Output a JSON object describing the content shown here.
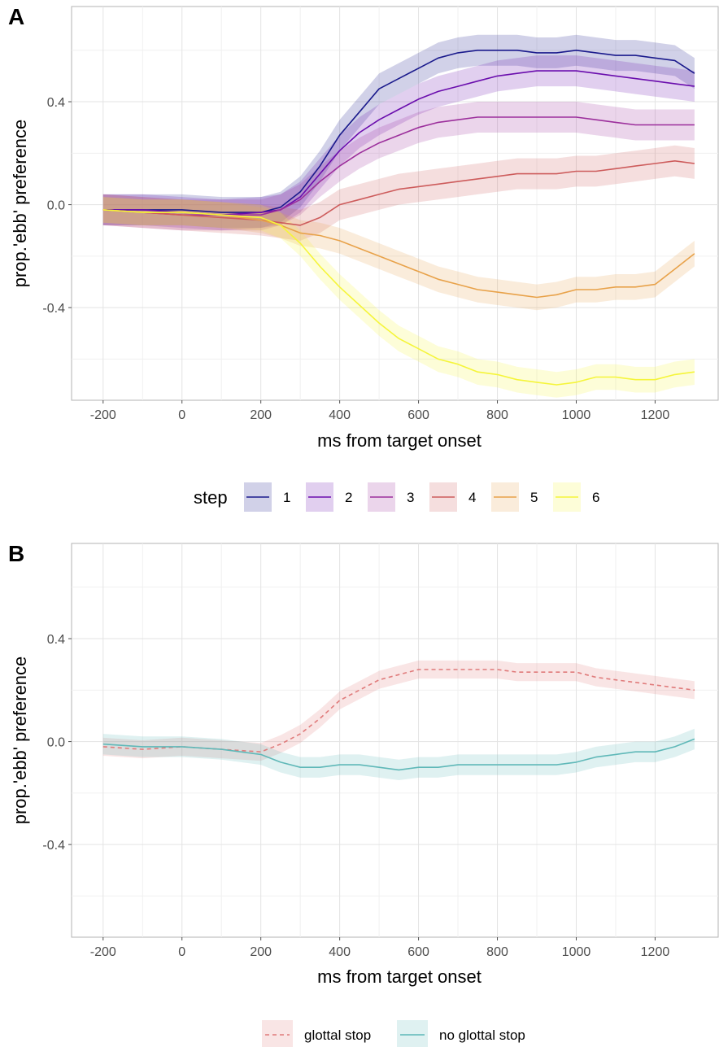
{
  "panels": [
    {
      "letter": "A",
      "xlabel": "ms from target onset",
      "ylabel": "prop.'ebb' preference",
      "legend_title": "step"
    },
    {
      "letter": "B",
      "xlabel": "ms from target onset",
      "ylabel": "prop.'ebb' preference",
      "legend_title": ""
    }
  ],
  "chart_data": [
    {
      "type": "line",
      "panel": "A",
      "xlabel": "ms from target onset",
      "ylabel": "prop.'ebb' preference",
      "xlim": [
        -280,
        1360
      ],
      "ylim": [
        -0.76,
        0.77
      ],
      "x_ticks": [
        -200,
        0,
        200,
        400,
        600,
        800,
        1000,
        1200
      ],
      "y_ticks": [
        -0.4,
        0.0,
        0.4
      ],
      "x_tick_labels": [
        "-200",
        "0",
        "200",
        "400",
        "600",
        "800",
        "1000",
        "1200"
      ],
      "y_tick_labels": [
        "-0.4",
        "0.0",
        "0.4"
      ],
      "grid": true,
      "ribbons": true,
      "legend_title": "step",
      "legend_position": "bottom",
      "series": [
        {
          "name": "1",
          "color": "#1a1a8c",
          "band": 0.06,
          "linestyle": "solid",
          "x": [
            -200,
            -100,
            0,
            100,
            200,
            250,
            300,
            350,
            400,
            450,
            500,
            550,
            600,
            650,
            700,
            750,
            800,
            850,
            900,
            950,
            1000,
            1050,
            1100,
            1150,
            1200,
            1250,
            1300
          ],
          "y": [
            -0.02,
            -0.02,
            -0.02,
            -0.03,
            -0.03,
            -0.01,
            0.05,
            0.15,
            0.27,
            0.36,
            0.45,
            0.49,
            0.53,
            0.57,
            0.59,
            0.6,
            0.6,
            0.6,
            0.59,
            0.59,
            0.6,
            0.59,
            0.58,
            0.58,
            0.57,
            0.56,
            0.51
          ]
        },
        {
          "name": "2",
          "color": "#6a0dad",
          "band": 0.06,
          "linestyle": "solid",
          "x": [
            -200,
            -100,
            0,
            100,
            200,
            250,
            300,
            350,
            400,
            450,
            500,
            550,
            600,
            650,
            700,
            750,
            800,
            850,
            900,
            950,
            1000,
            1050,
            1100,
            1150,
            1200,
            1250,
            1300
          ],
          "y": [
            -0.02,
            -0.02,
            -0.03,
            -0.04,
            -0.03,
            -0.02,
            0.03,
            0.12,
            0.21,
            0.28,
            0.33,
            0.37,
            0.41,
            0.44,
            0.46,
            0.48,
            0.5,
            0.51,
            0.52,
            0.52,
            0.52,
            0.51,
            0.5,
            0.49,
            0.48,
            0.47,
            0.46
          ]
        },
        {
          "name": "3",
          "color": "#9c2f9c",
          "band": 0.06,
          "linestyle": "solid",
          "x": [
            -200,
            -100,
            0,
            100,
            200,
            250,
            300,
            350,
            400,
            450,
            500,
            550,
            600,
            650,
            700,
            750,
            800,
            850,
            900,
            950,
            1000,
            1050,
            1100,
            1150,
            1200,
            1250,
            1300
          ],
          "y": [
            -0.02,
            -0.03,
            -0.04,
            -0.04,
            -0.04,
            -0.02,
            0.02,
            0.09,
            0.15,
            0.2,
            0.24,
            0.27,
            0.3,
            0.32,
            0.33,
            0.34,
            0.34,
            0.34,
            0.34,
            0.34,
            0.34,
            0.33,
            0.32,
            0.31,
            0.31,
            0.31,
            0.31
          ]
        },
        {
          "name": "4",
          "color": "#cd5c5c",
          "band": 0.06,
          "linestyle": "solid",
          "x": [
            -200,
            -100,
            0,
            100,
            200,
            250,
            300,
            350,
            400,
            450,
            500,
            550,
            600,
            650,
            700,
            750,
            800,
            850,
            900,
            950,
            1000,
            1050,
            1100,
            1150,
            1200,
            1250,
            1300
          ],
          "y": [
            -0.02,
            -0.03,
            -0.04,
            -0.05,
            -0.06,
            -0.07,
            -0.08,
            -0.05,
            0.0,
            0.02,
            0.04,
            0.06,
            0.07,
            0.08,
            0.09,
            0.1,
            0.11,
            0.12,
            0.12,
            0.12,
            0.13,
            0.13,
            0.14,
            0.15,
            0.16,
            0.17,
            0.16
          ]
        },
        {
          "name": "5",
          "color": "#e8a24a",
          "band": 0.05,
          "linestyle": "solid",
          "x": [
            -200,
            -100,
            0,
            100,
            200,
            250,
            300,
            350,
            400,
            450,
            500,
            550,
            600,
            650,
            700,
            750,
            800,
            850,
            900,
            950,
            1000,
            1050,
            1100,
            1150,
            1200,
            1250,
            1300
          ],
          "y": [
            -0.02,
            -0.03,
            -0.03,
            -0.04,
            -0.06,
            -0.08,
            -0.11,
            -0.12,
            -0.14,
            -0.17,
            -0.2,
            -0.23,
            -0.26,
            -0.29,
            -0.31,
            -0.33,
            -0.34,
            -0.35,
            -0.36,
            -0.35,
            -0.33,
            -0.33,
            -0.32,
            -0.32,
            -0.31,
            -0.25,
            -0.19
          ]
        },
        {
          "name": "6",
          "color": "#f5f53a",
          "band": 0.05,
          "linestyle": "solid",
          "x": [
            -200,
            -100,
            0,
            100,
            200,
            250,
            300,
            350,
            400,
            450,
            500,
            550,
            600,
            650,
            700,
            750,
            800,
            850,
            900,
            950,
            1000,
            1050,
            1100,
            1150,
            1200,
            1250,
            1300
          ],
          "y": [
            -0.02,
            -0.03,
            -0.03,
            -0.04,
            -0.05,
            -0.08,
            -0.15,
            -0.24,
            -0.32,
            -0.39,
            -0.46,
            -0.52,
            -0.56,
            -0.6,
            -0.62,
            -0.65,
            -0.66,
            -0.68,
            -0.69,
            -0.7,
            -0.69,
            -0.67,
            -0.67,
            -0.68,
            -0.68,
            -0.66,
            -0.65
          ]
        }
      ]
    },
    {
      "type": "line",
      "panel": "B",
      "xlabel": "ms from target onset",
      "ylabel": "prop.'ebb' preference",
      "xlim": [
        -280,
        1360
      ],
      "ylim": [
        -0.76,
        0.77
      ],
      "x_ticks": [
        -200,
        0,
        200,
        400,
        600,
        800,
        1000,
        1200
      ],
      "y_ticks": [
        -0.4,
        0.0,
        0.4
      ],
      "x_tick_labels": [
        "-200",
        "0",
        "200",
        "400",
        "600",
        "800",
        "1000",
        "1200"
      ],
      "y_tick_labels": [
        "-0.4",
        "0.0",
        "0.4"
      ],
      "grid": true,
      "ribbons": true,
      "legend_position": "bottom",
      "series": [
        {
          "name": "glottal stop",
          "color": "#e07b7b",
          "band": 0.035,
          "linestyle": "dashed",
          "x": [
            -200,
            -100,
            0,
            100,
            200,
            250,
            300,
            350,
            400,
            450,
            500,
            550,
            600,
            650,
            700,
            750,
            800,
            850,
            900,
            950,
            1000,
            1050,
            1100,
            1150,
            1200,
            1250,
            1300
          ],
          "y": [
            -0.02,
            -0.03,
            -0.02,
            -0.03,
            -0.04,
            -0.01,
            0.03,
            0.09,
            0.16,
            0.2,
            0.24,
            0.26,
            0.28,
            0.28,
            0.28,
            0.28,
            0.28,
            0.27,
            0.27,
            0.27,
            0.27,
            0.25,
            0.24,
            0.23,
            0.22,
            0.21,
            0.2
          ]
        },
        {
          "name": "no glottal stop",
          "color": "#5fb8b8",
          "band": 0.04,
          "linestyle": "solid",
          "x": [
            -200,
            -100,
            0,
            100,
            200,
            250,
            300,
            350,
            400,
            450,
            500,
            550,
            600,
            650,
            700,
            750,
            800,
            850,
            900,
            950,
            1000,
            1050,
            1100,
            1150,
            1200,
            1250,
            1300
          ],
          "y": [
            -0.01,
            -0.02,
            -0.02,
            -0.03,
            -0.05,
            -0.08,
            -0.1,
            -0.1,
            -0.09,
            -0.09,
            -0.1,
            -0.11,
            -0.1,
            -0.1,
            -0.09,
            -0.09,
            -0.09,
            -0.09,
            -0.09,
            -0.09,
            -0.08,
            -0.06,
            -0.05,
            -0.04,
            -0.04,
            -0.02,
            0.01
          ]
        }
      ]
    }
  ]
}
